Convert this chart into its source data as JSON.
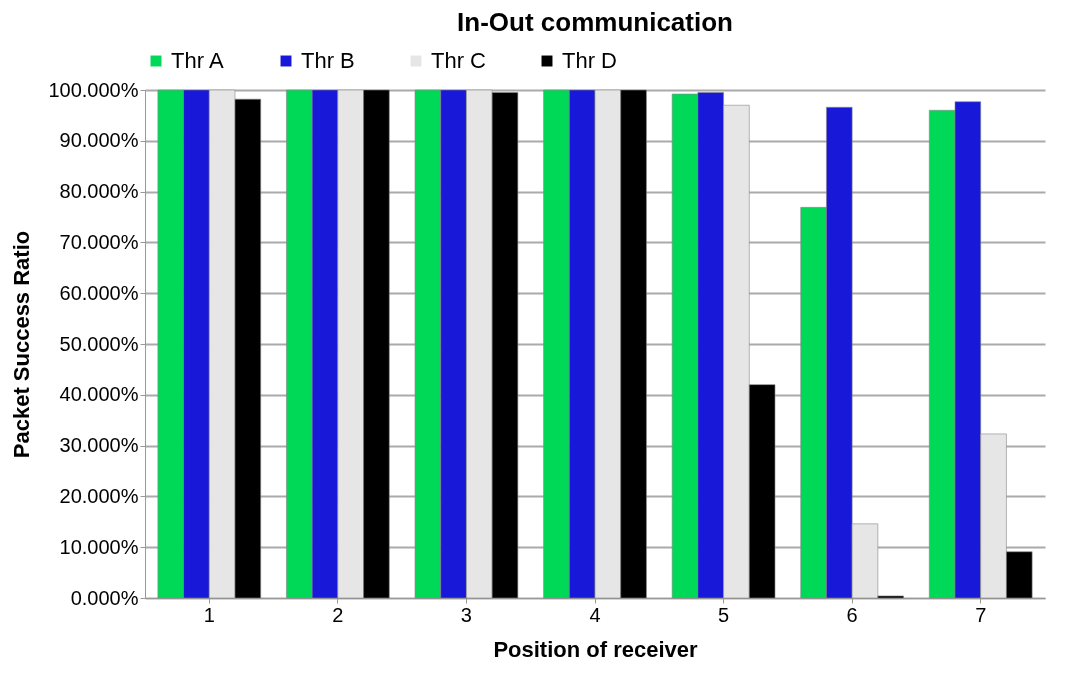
{
  "chart_data": {
    "type": "bar",
    "title": "In-Out communication",
    "xlabel": "Position of receiver",
    "ylabel": "Packet Success Ratio",
    "categories": [
      "1",
      "2",
      "3",
      "4",
      "5",
      "6",
      "7"
    ],
    "series": [
      {
        "name": "Thr A",
        "color": "#00d858",
        "values": [
          100,
          100,
          100,
          100,
          99.2,
          76.9,
          96.0
        ]
      },
      {
        "name": "Thr B",
        "color": "#1818d8",
        "values": [
          100,
          100,
          100,
          100,
          99.5,
          96.6,
          97.7
        ]
      },
      {
        "name": "Thr C",
        "color": "#e6e6e6",
        "values": [
          100,
          100,
          100,
          100,
          97.0,
          14.6,
          32.3
        ]
      },
      {
        "name": "Thr D",
        "color": "#000000",
        "values": [
          98.2,
          100,
          99.5,
          100,
          42.0,
          0.4,
          9.1
        ]
      }
    ],
    "ylim": [
      0,
      100
    ],
    "yticks": [
      {
        "value": 0,
        "label": "0.000%"
      },
      {
        "value": 10,
        "label": "10.000%"
      },
      {
        "value": 20,
        "label": "20.000%"
      },
      {
        "value": 30,
        "label": "30.000%"
      },
      {
        "value": 40,
        "label": "40.000%"
      },
      {
        "value": 50,
        "label": "50.000%"
      },
      {
        "value": 60,
        "label": "60.000%"
      },
      {
        "value": 70,
        "label": "70.000%"
      },
      {
        "value": 80,
        "label": "80.000%"
      },
      {
        "value": 90,
        "label": "90.000%"
      },
      {
        "value": 100,
        "label": "100.000%"
      }
    ],
    "grid": "y",
    "legend": "top"
  }
}
